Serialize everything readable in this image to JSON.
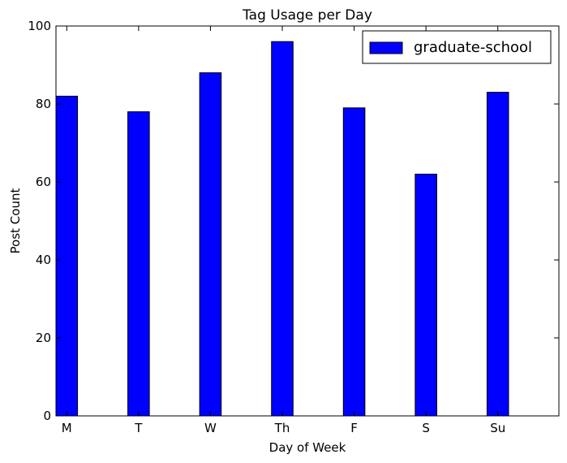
{
  "chart_data": {
    "type": "bar",
    "title": "Tag Usage per Day",
    "xlabel": "Day of Week",
    "ylabel": "Post Count",
    "categories": [
      "M",
      "T",
      "W",
      "Th",
      "F",
      "S",
      "Su"
    ],
    "series": [
      {
        "name": "graduate-school",
        "values": [
          82,
          78,
          88,
          96,
          79,
          62,
          83
        ],
        "color": "#0000ff"
      }
    ],
    "ylim": [
      0,
      100
    ],
    "yticks": [
      0,
      20,
      40,
      60,
      80,
      100
    ],
    "grid": false,
    "legend_position": "top-right"
  }
}
